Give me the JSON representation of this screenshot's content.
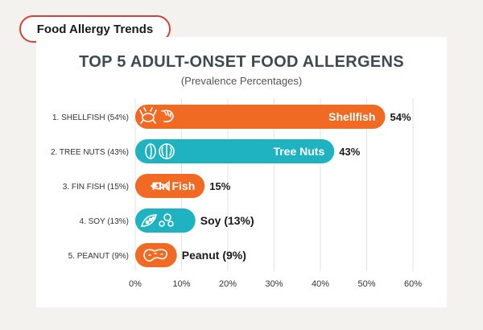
{
  "header": {
    "tag_label": "Food Allergy Trends"
  },
  "chart_data": {
    "type": "bar",
    "orientation": "horizontal",
    "title": "TOP 5 ADULT-ONSET FOOD ALLERGENS",
    "subtitle": "(Prevalence Percentages)",
    "categories": [
      "1. SHELLFISH (54%)",
      "2. TREE NUTS (43%)",
      "3. FIN FISH (15%)",
      "4. SOY (13%)",
      "5. PEANUT (9%)"
    ],
    "values": [
      54,
      43,
      15,
      13,
      9
    ],
    "bar_labels": [
      "Shellfish",
      "Tree Nuts",
      "Fin Fish",
      "Soy (13%)",
      "Peanut (9%)"
    ],
    "bar_label_inside": [
      true,
      true,
      true,
      false,
      false
    ],
    "value_labels": [
      "54%",
      "43%",
      "15%",
      "",
      ""
    ],
    "bar_colors": [
      "#f06a24",
      "#1fb2c0",
      "#f06a24",
      "#1fb2c0",
      "#f06a24"
    ],
    "bar_icons": [
      "crab-shrimp-icon",
      "almond-walnut-icon",
      "fish-icon",
      "soybean-icon",
      "peanut-icon"
    ],
    "xlim": [
      0,
      60
    ],
    "xticks": [
      "0%",
      "10%",
      "20%",
      "30%",
      "40%",
      "50%",
      "60%"
    ],
    "grid": true,
    "colors": {
      "orange": "#f06a24",
      "teal": "#1fb2c0",
      "tag_border": "#d8403a"
    }
  }
}
